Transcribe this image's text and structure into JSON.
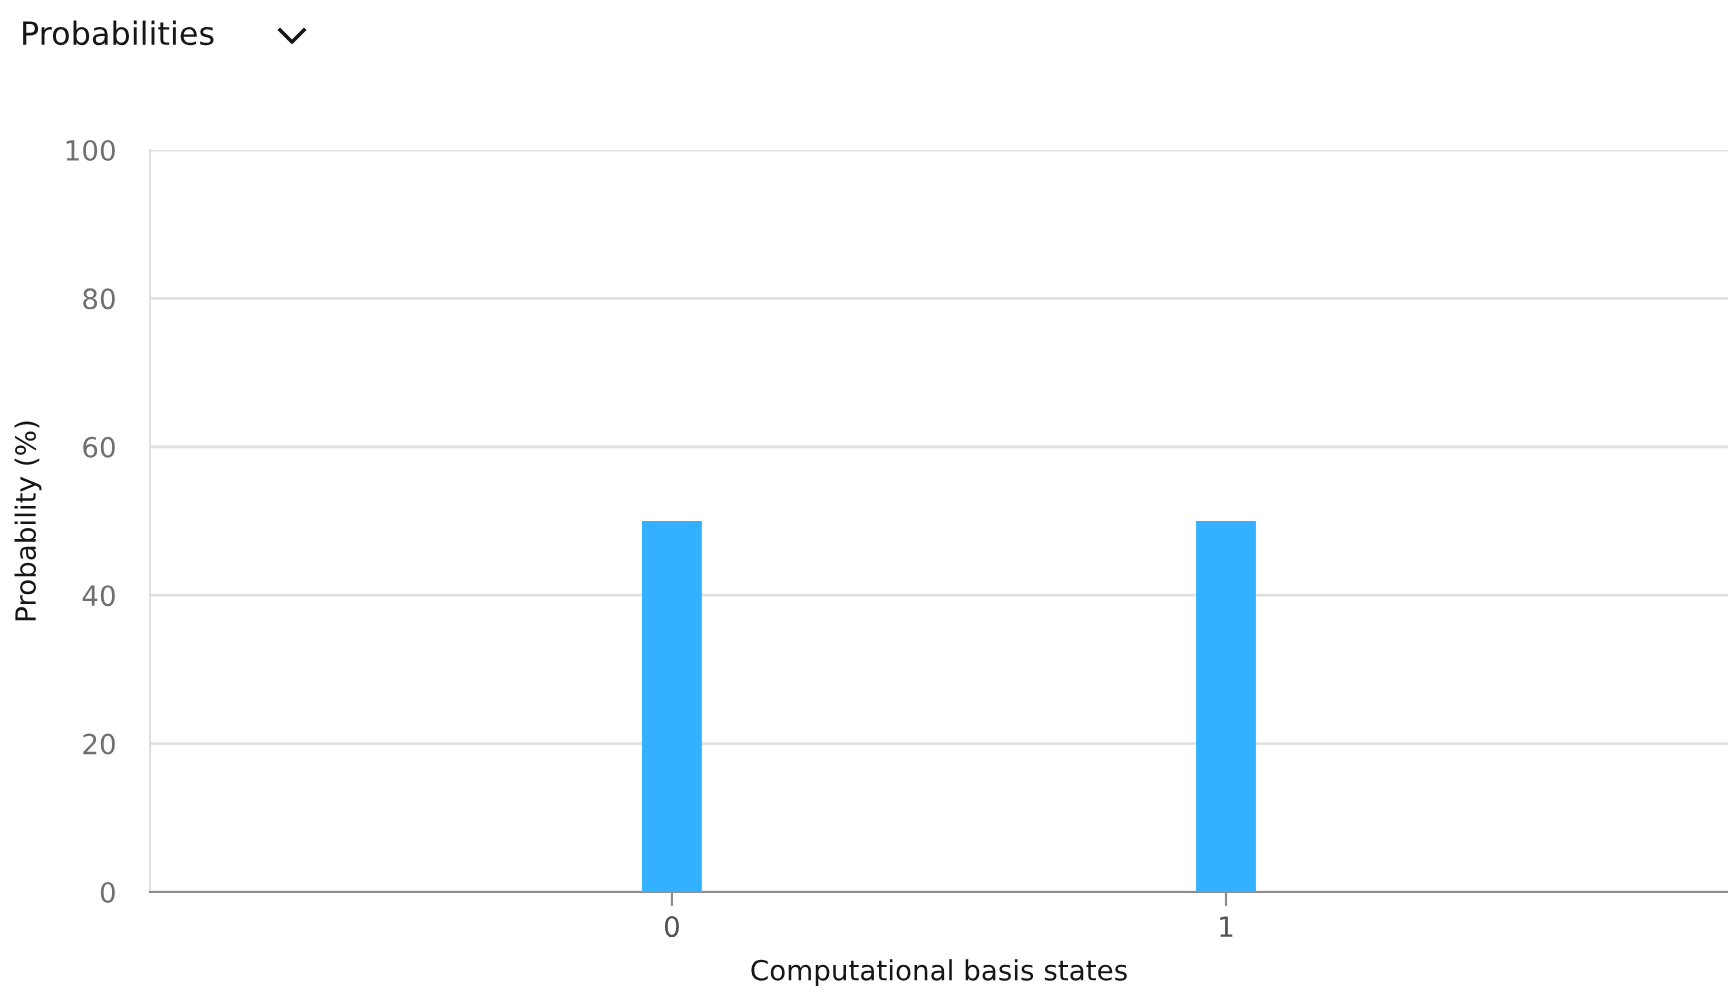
{
  "chart_data": {
    "type": "bar",
    "title": "Probabilities",
    "xlabel": "Computational basis states",
    "ylabel": "Probability (%)",
    "categories": [
      "0",
      "1"
    ],
    "values": [
      50,
      50
    ],
    "color": "#33b1ff",
    "ylim": [
      0,
      100
    ],
    "yticks": [
      0,
      20,
      40,
      60,
      80,
      100
    ],
    "grid": "y"
  }
}
